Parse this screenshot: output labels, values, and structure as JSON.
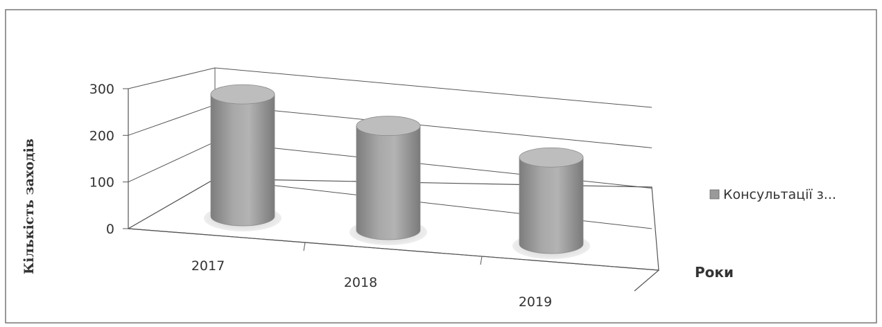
{
  "chart_data": {
    "type": "bar",
    "bar_shape": "cylinder",
    "perspective": "3d",
    "categories": [
      "2017",
      "2018",
      "2019"
    ],
    "series": [
      {
        "name": "Консультації з...",
        "values": [
          275,
          235,
          195
        ]
      }
    ],
    "y_ticks": [
      "0",
      "100",
      "200",
      "300"
    ],
    "ylim": [
      0,
      300
    ],
    "ylabel": "Кількість заходів",
    "xlabel": "Роки",
    "grid": true,
    "legend_position": "right",
    "colors": {
      "bar": "#9a9a9a",
      "bar_top": "#bdbdbd",
      "shadow": "#cfcfcf",
      "grid": "#555555",
      "axis": "#555555",
      "frame": "#777777"
    }
  }
}
